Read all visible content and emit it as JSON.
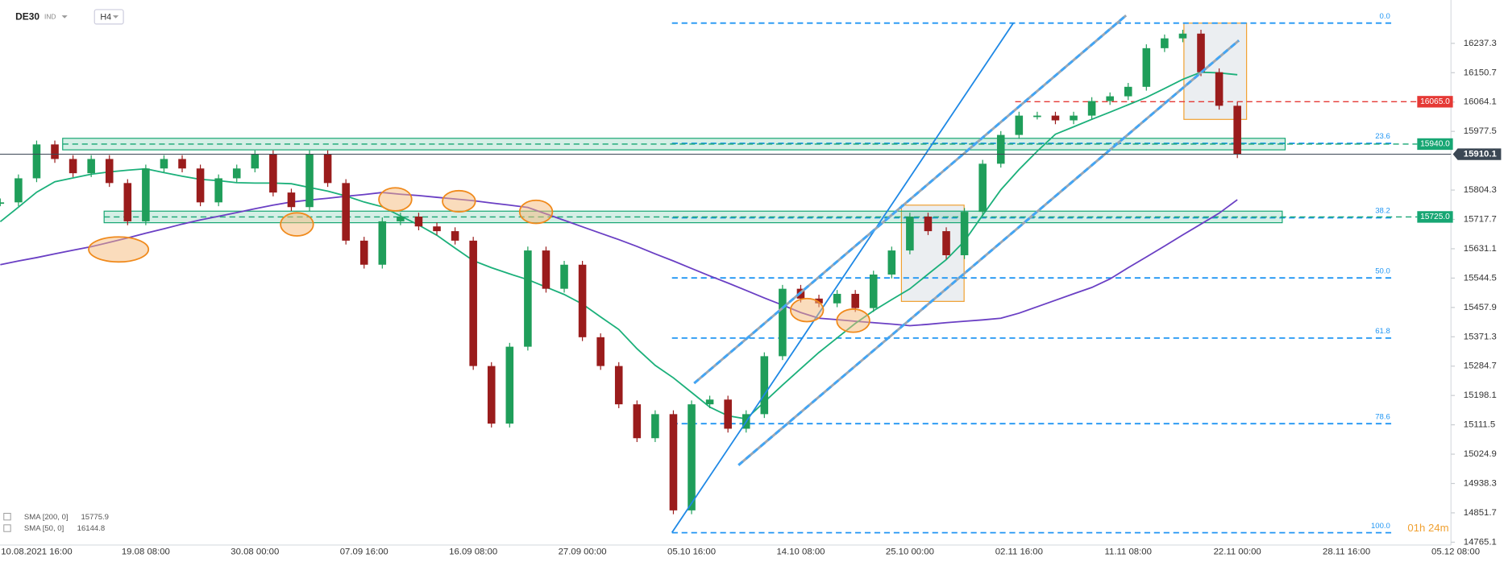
{
  "header": {
    "symbol": "DE30",
    "symbol_type": "IND",
    "interval": "H4",
    "countdown": "01h 24m"
  },
  "chart_data": {
    "type": "candlestick",
    "categories": [
      null,
      null,
      "10.08.2021 16:00",
      null,
      null,
      null,
      null,
      null,
      "19.08 08:00",
      null,
      null,
      null,
      null,
      null,
      "30.08 00:00",
      null,
      null,
      null,
      null,
      null,
      "07.09 16:00",
      null,
      null,
      null,
      null,
      null,
      "16.09 08:00",
      null,
      null,
      null,
      null,
      null,
      "27.09 00:00",
      null,
      null,
      null,
      null,
      null,
      "05.10 16:00",
      null,
      null,
      null,
      null,
      null,
      "14.10 08:00",
      null,
      null,
      null,
      null,
      null,
      "25.10 00:00",
      null,
      null,
      null,
      null,
      null,
      "02.11 16:00",
      null,
      null,
      null,
      null,
      null,
      "11.11 08:00",
      null,
      null,
      null,
      null,
      null,
      "22.11 00:00",
      null,
      null,
      null,
      null,
      null,
      "28.11 16:00",
      null,
      null,
      null,
      null,
      null,
      "05.12 08:00"
    ],
    "series": [
      {
        "name": "DE30",
        "type": "candlestick",
        "up_color": "#1f9e5a",
        "down_color": "#9a1c1c",
        "values": [
          15768,
          15839,
          15939,
          15896,
          15854,
          15896,
          15825,
          15712,
          15868,
          15896,
          15868,
          15768,
          15839,
          15868,
          15910,
          15797,
          15754,
          15910,
          15825,
          15655,
          15584,
          15712,
          15726,
          15697,
          15683,
          15655,
          15285,
          15115,
          15342,
          15626,
          15513,
          15584,
          15370,
          15285,
          15172,
          15072,
          15143,
          14859,
          15172,
          15186,
          15100,
          15143,
          15314,
          15513,
          15484,
          15470,
          15498,
          15456,
          15555,
          15626,
          15726,
          15683,
          15612,
          15740,
          15882,
          15967,
          16024,
          16024,
          16010,
          16024,
          16067,
          16081,
          16109,
          16223,
          16252,
          16266,
          16152,
          16053,
          15910.1,
          null,
          null,
          null,
          null,
          null,
          null,
          null,
          null,
          null,
          null,
          null,
          null
        ]
      },
      {
        "name": "SMA [200, 0]",
        "type": "line",
        "color": "#6a3fc4",
        "values": [
          15584,
          15595,
          15605,
          15616,
          15627,
          15637,
          15650,
          15663,
          15677,
          15690,
          15704,
          15716,
          15727,
          15738,
          15749,
          15760,
          15769,
          15775,
          15780,
          15786,
          15791,
          15797,
          15792,
          15788,
          15783,
          15778,
          15773,
          15766,
          15760,
          15753,
          15734,
          15715,
          15696,
          15677,
          15658,
          15638,
          15616,
          15595,
          15573,
          15551,
          15530,
          15508,
          15486,
          15465,
          15443,
          15426,
          15422,
          15417,
          15413,
          15409,
          15404,
          15408,
          15413,
          15417,
          15421,
          15426,
          15441,
          15460,
          15479,
          15498,
          15517,
          15542,
          15575,
          15607,
          15639,
          15672,
          15704,
          15736,
          15775.9,
          null,
          null,
          null,
          null,
          null,
          null,
          null,
          null,
          null,
          null,
          null,
          null
        ]
      },
      {
        "name": "SMA [50, 0]",
        "type": "line",
        "color": "#1bb07a",
        "values": [
          15711,
          15754,
          15798,
          15829,
          15840,
          15851,
          15858,
          15863,
          15867,
          15856,
          15845,
          15836,
          15832,
          15826,
          15825,
          15825,
          15823,
          15812,
          15801,
          15787,
          15769,
          15755,
          15728,
          15701,
          15671,
          15633,
          15596,
          15575,
          15557,
          15540,
          15518,
          15496,
          15468,
          15430,
          15393,
          15336,
          15287,
          15250,
          15207,
          15164,
          15138,
          15129,
          15179,
          15229,
          15277,
          15325,
          15368,
          15411,
          15448,
          15481,
          15513,
          15556,
          15599,
          15654,
          15730,
          15805,
          15865,
          15919,
          15969,
          15991,
          16013,
          16034,
          16056,
          16078,
          16104,
          16131,
          16152,
          16150,
          16144.8,
          null,
          null,
          null,
          null,
          null,
          null,
          null,
          null,
          null,
          null,
          null,
          null
        ]
      }
    ],
    "ylim": [
      14759.5,
      16365.2
    ],
    "yticks": [
      16237.3,
      16150.7,
      16064.1,
      15977.5,
      15804.3,
      15717.7,
      15631.1,
      15544.5,
      15457.9,
      15371.3,
      15284.7,
      15198.1,
      15111.5,
      15024.9,
      14938.3,
      14851.7,
      14765.1
    ],
    "levels": [
      {
        "value": 16065,
        "label": "16065.0",
        "color": "#e53935",
        "zone": false
      },
      {
        "value": 15940,
        "label": "15940.0",
        "color": "#17a673",
        "zone": true
      },
      {
        "value": 15725,
        "label": "15725.0",
        "color": "#17a673",
        "zone": true
      }
    ],
    "fibonacci": {
      "high": 16297,
      "low": 14793,
      "color": "#2196f3",
      "levels": [
        {
          "value": 0,
          "label": "0.0"
        },
        23.6,
        38.2,
        {
          "value": 50,
          "label": "50.0"
        },
        61.8,
        78.6,
        {
          "value": 100,
          "label": "100.0"
        }
      ]
    }
  }
}
